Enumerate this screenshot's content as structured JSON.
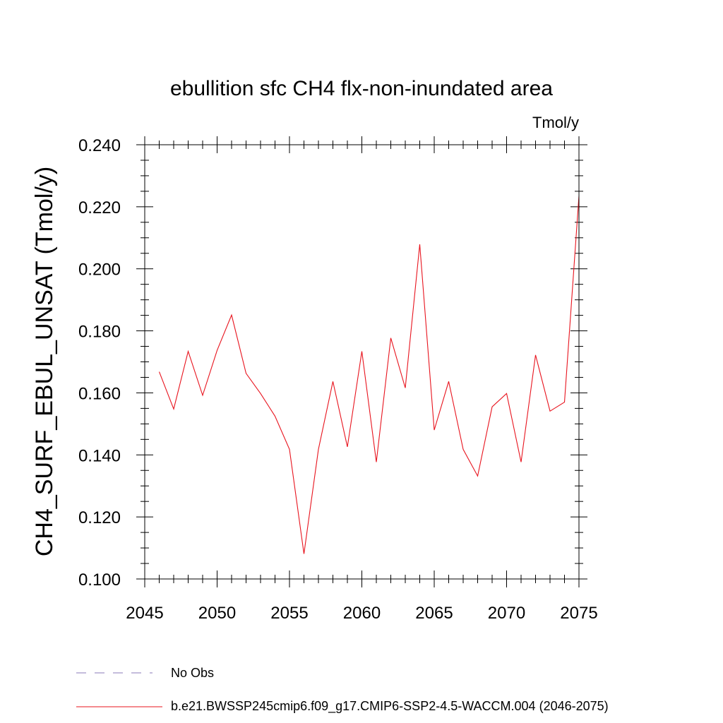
{
  "chart_data": {
    "type": "line",
    "title": "ebullition sfc CH4 flx-non-inundated area",
    "units_label": "Tmol/y",
    "ylabel": "CH4_SURF_EBUL_UNSAT  (Tmol/y)",
    "xlabel": "",
    "xlim": [
      2045,
      2075
    ],
    "ylim": [
      0.1,
      0.24
    ],
    "x_ticks": [
      2045,
      2050,
      2055,
      2060,
      2065,
      2070,
      2075
    ],
    "x_tick_labels": [
      "2045",
      "2050",
      "2055",
      "2060",
      "2065",
      "2070",
      "2075"
    ],
    "y_ticks": [
      0.1,
      0.12,
      0.14,
      0.16,
      0.18,
      0.2,
      0.22,
      0.24
    ],
    "y_tick_labels": [
      "0.100",
      "0.120",
      "0.140",
      "0.160",
      "0.180",
      "0.200",
      "0.220",
      "0.240"
    ],
    "grid": false,
    "series": [
      {
        "name": "b.e21.BWSSP245cmip6.f09_g17.CMIP6-SSP2-4.5-WACCM.004 (2046-2075)",
        "color": "#e8141e",
        "x": [
          2046,
          2047,
          2048,
          2049,
          2050,
          2051,
          2052,
          2053,
          2054,
          2055,
          2056,
          2057,
          2058,
          2059,
          2060,
          2061,
          2062,
          2063,
          2064,
          2065,
          2066,
          2067,
          2068,
          2069,
          2070,
          2071,
          2072,
          2073,
          2074,
          2075
        ],
        "values": [
          0.1668,
          0.1548,
          0.1734,
          0.1592,
          0.1737,
          0.1851,
          0.1663,
          0.1598,
          0.1525,
          0.1418,
          0.1081,
          0.1418,
          0.1637,
          0.1426,
          0.1734,
          0.1377,
          0.1777,
          0.1616,
          0.2079,
          0.148,
          0.1637,
          0.1418,
          0.1332,
          0.1555,
          0.1598,
          0.1377,
          0.1722,
          0.1541,
          0.157,
          0.2235
        ]
      }
    ],
    "legend": [
      {
        "label": "No Obs",
        "color": "#8a7ab8",
        "style": "dashed"
      },
      {
        "label": "b.e21.BWSSP245cmip6.f09_g17.CMIP6-SSP2-4.5-WACCM.004 (2046-2075)",
        "color": "#e8141e",
        "style": "solid"
      }
    ]
  }
}
